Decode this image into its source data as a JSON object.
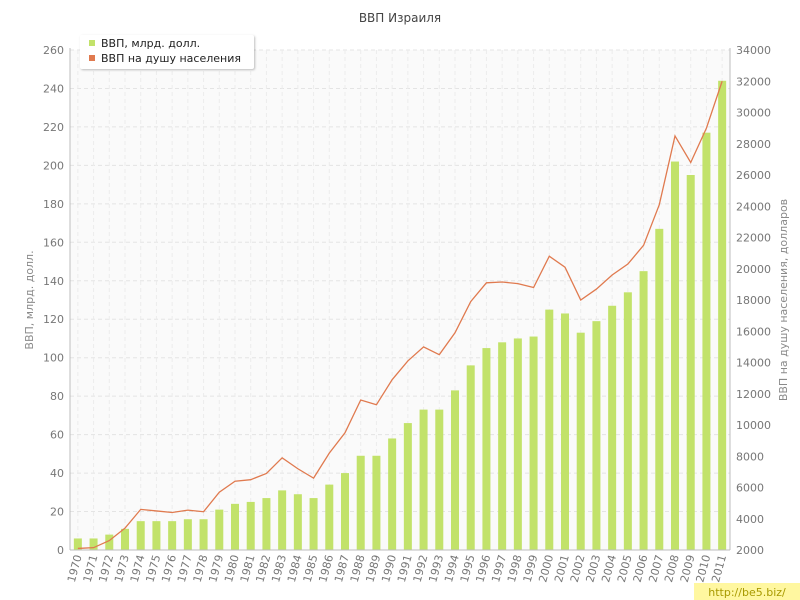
{
  "chart_data": {
    "type": "bar+line",
    "title": "ВВП Израиля",
    "categories": [
      "1970",
      "1971",
      "1972",
      "1973",
      "1974",
      "1975",
      "1976",
      "1977",
      "1978",
      "1979",
      "1980",
      "1981",
      "1982",
      "1983",
      "1984",
      "1985",
      "1986",
      "1987",
      "1988",
      "1989",
      "1990",
      "1991",
      "1992",
      "1993",
      "1994",
      "1995",
      "1996",
      "1997",
      "1998",
      "1999",
      "2000",
      "2001",
      "2002",
      "2003",
      "2004",
      "2005",
      "2006",
      "2007",
      "2008",
      "2009",
      "2010",
      "2011"
    ],
    "series": [
      {
        "name": "ВВП, млрд. долл.",
        "type": "bar",
        "axis": "left",
        "color": "#c2e26a",
        "values": [
          6,
          6,
          8,
          11,
          15,
          15,
          15,
          16,
          16,
          21,
          24,
          25,
          27,
          31,
          29,
          27,
          34,
          40,
          49,
          49,
          58,
          66,
          73,
          73,
          83,
          96,
          105,
          108,
          110,
          111,
          125,
          123,
          113,
          119,
          127,
          134,
          145,
          167,
          202,
          195,
          217,
          244
        ]
      },
      {
        "name": "ВВП на душу населения",
        "type": "line",
        "axis": "right",
        "color": "#e07a4f",
        "values": [
          2100,
          2150,
          2600,
          3400,
          4600,
          4500,
          4400,
          4550,
          4450,
          5700,
          6400,
          6500,
          6900,
          7900,
          7200,
          6600,
          8200,
          9500,
          11600,
          11300,
          12900,
          14100,
          15000,
          14500,
          15900,
          17900,
          19100,
          19150,
          19050,
          18800,
          20800,
          20100,
          18000,
          18700,
          19600,
          20300,
          21500,
          24100,
          28500,
          26800,
          29000,
          32000
        ]
      }
    ],
    "ylabel": "ВВП, млрд. долл.",
    "ylim": [
      0,
      260
    ],
    "yticks": [
      "0",
      "20",
      "40",
      "60",
      "80",
      "100",
      "120",
      "140",
      "160",
      "180",
      "200",
      "220",
      "240",
      "260"
    ],
    "y2label": "ВВП на душу населения, долларов",
    "y2lim": [
      2000,
      34000
    ],
    "y2ticks": [
      "2000",
      "4000",
      "6000",
      "8000",
      "10000",
      "12000",
      "14000",
      "16000",
      "18000",
      "20000",
      "22000",
      "24000",
      "26000",
      "28000",
      "30000",
      "32000",
      "34000"
    ],
    "grid": true,
    "legend_position": "top-left",
    "watermark": "http://be5.biz/"
  }
}
